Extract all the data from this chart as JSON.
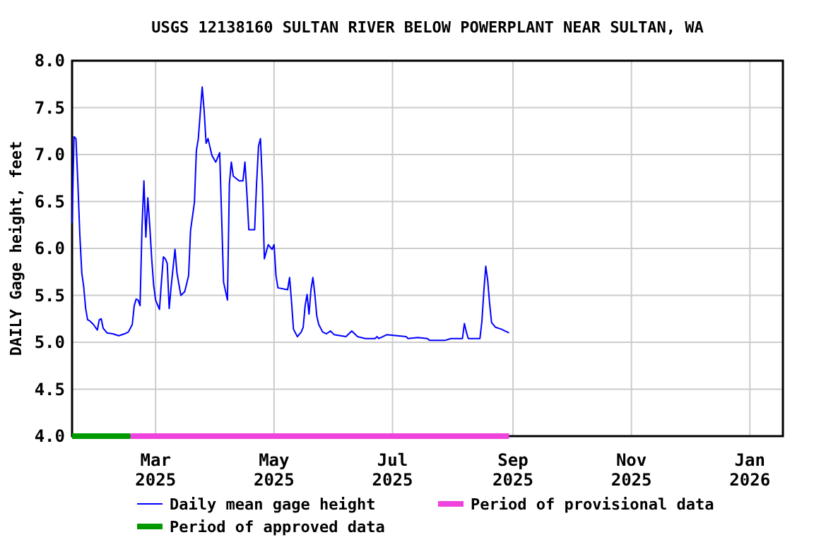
{
  "chart_data": {
    "type": "line",
    "title": "USGS 12138160 SULTAN RIVER BELOW POWERPLANT NEAR SULTAN, WA",
    "ylabel": "DAILY Gage height, feet",
    "xlim": [
      "2025-01-17",
      "2026-01-18"
    ],
    "xticks": [
      {
        "value": "2025-03-01",
        "label": "Mar 2025"
      },
      {
        "value": "2025-05-01",
        "label": "May 2025"
      },
      {
        "value": "2025-07-01",
        "label": "Jul 2025"
      },
      {
        "value": "2025-09-01",
        "label": "Sep 2025"
      },
      {
        "value": "2025-11-01",
        "label": "Nov 2025"
      },
      {
        "value": "2026-01-01",
        "label": "Jan 2026"
      }
    ],
    "ylim": [
      4,
      8
    ],
    "yticks": [
      {
        "value": 4,
        "label": "4.0"
      },
      {
        "value": 4.5,
        "label": "4.5"
      },
      {
        "value": 5,
        "label": "5.0"
      },
      {
        "value": 5.5,
        "label": "5.5"
      },
      {
        "value": 6,
        "label": "6.0"
      },
      {
        "value": 6.5,
        "label": "6.5"
      },
      {
        "value": 7,
        "label": "7.0"
      },
      {
        "value": 7.5,
        "label": "7.5"
      },
      {
        "value": 8,
        "label": "8.0"
      }
    ],
    "grid": true,
    "legend": "bottom",
    "marker": "none",
    "line_style": "solid",
    "series": [
      {
        "name": "Daily mean gage height",
        "color": "#0000ff",
        "x": [
          "2025-01-17",
          "2025-01-18",
          "2025-01-19",
          "2025-01-20",
          "2025-01-21",
          "2025-01-22",
          "2025-01-23",
          "2025-01-24",
          "2025-01-25",
          "2025-01-26",
          "2025-01-28",
          "2025-01-30",
          "2025-01-31",
          "2025-02-01",
          "2025-02-02",
          "2025-02-04",
          "2025-02-07",
          "2025-02-10",
          "2025-02-13",
          "2025-02-15",
          "2025-02-17",
          "2025-02-18",
          "2025-02-19",
          "2025-02-20",
          "2025-02-21",
          "2025-02-22",
          "2025-02-23",
          "2025-02-24",
          "2025-02-25",
          "2025-02-26",
          "2025-02-27",
          "2025-02-28",
          "2025-03-01",
          "2025-03-03",
          "2025-03-04",
          "2025-03-05",
          "2025-03-06",
          "2025-03-07",
          "2025-03-08",
          "2025-03-09",
          "2025-03-11",
          "2025-03-12",
          "2025-03-14",
          "2025-03-16",
          "2025-03-18",
          "2025-03-19",
          "2025-03-21",
          "2025-03-22",
          "2025-03-23",
          "2025-03-25",
          "2025-03-26",
          "2025-03-27",
          "2025-03-28",
          "2025-03-30",
          "2025-04-01",
          "2025-04-03",
          "2025-04-04",
          "2025-04-05",
          "2025-04-07",
          "2025-04-08",
          "2025-04-09",
          "2025-04-10",
          "2025-04-13",
          "2025-04-15",
          "2025-04-16",
          "2025-04-17",
          "2025-04-18",
          "2025-04-21",
          "2025-04-22",
          "2025-04-23",
          "2025-04-24",
          "2025-04-25",
          "2025-04-26",
          "2025-04-28",
          "2025-04-30",
          "2025-05-01",
          "2025-05-02",
          "2025-05-03",
          "2025-05-08",
          "2025-05-09",
          "2025-05-10",
          "2025-05-11",
          "2025-05-13",
          "2025-05-15",
          "2025-05-16",
          "2025-05-17",
          "2025-05-18",
          "2025-05-19",
          "2025-05-20",
          "2025-05-21",
          "2025-05-22",
          "2025-05-23",
          "2025-05-24",
          "2025-05-26",
          "2025-05-28",
          "2025-05-30",
          "2025-06-01",
          "2025-06-07",
          "2025-06-10",
          "2025-06-13",
          "2025-06-17",
          "2025-06-22",
          "2025-06-23",
          "2025-06-24",
          "2025-06-28",
          "2025-07-08",
          "2025-07-09",
          "2025-07-14",
          "2025-07-19",
          "2025-07-20",
          "2025-07-28",
          "2025-07-31",
          "2025-08-06",
          "2025-08-07",
          "2025-08-08",
          "2025-08-09",
          "2025-08-15",
          "2025-08-16",
          "2025-08-17",
          "2025-08-18",
          "2025-08-19",
          "2025-08-20",
          "2025-08-21",
          "2025-08-23",
          "2025-08-26",
          "2025-08-28",
          "2025-08-30"
        ],
        "values": [
          6.27,
          7.19,
          7.17,
          6.69,
          6.14,
          5.74,
          5.59,
          5.36,
          5.24,
          5.23,
          5.19,
          5.13,
          5.24,
          5.25,
          5.15,
          5.1,
          5.09,
          5.07,
          5.09,
          5.11,
          5.19,
          5.39,
          5.46,
          5.45,
          5.39,
          6.22,
          6.72,
          6.12,
          6.54,
          6.24,
          5.89,
          5.61,
          5.45,
          5.35,
          5.64,
          5.91,
          5.89,
          5.84,
          5.36,
          5.59,
          5.99,
          5.74,
          5.5,
          5.54,
          5.71,
          6.19,
          6.49,
          7.04,
          7.17,
          7.72,
          7.47,
          7.12,
          7.17,
          6.99,
          6.92,
          7.02,
          6.34,
          5.64,
          5.45,
          6.69,
          6.92,
          6.77,
          6.72,
          6.72,
          6.92,
          6.59,
          6.2,
          6.2,
          6.69,
          7.09,
          7.17,
          6.69,
          5.89,
          6.04,
          5.99,
          6.04,
          5.71,
          5.58,
          5.56,
          5.69,
          5.43,
          5.14,
          5.06,
          5.11,
          5.16,
          5.39,
          5.51,
          5.3,
          5.56,
          5.69,
          5.51,
          5.28,
          5.19,
          5.11,
          5.09,
          5.12,
          5.08,
          5.06,
          5.12,
          5.06,
          5.04,
          5.04,
          5.06,
          5.04,
          5.08,
          5.06,
          5.04,
          5.05,
          5.04,
          5.02,
          5.02,
          5.04,
          5.04,
          5.2,
          5.11,
          5.04,
          5.04,
          5.22,
          5.54,
          5.81,
          5.66,
          5.41,
          5.21,
          5.16,
          5.14,
          5.12,
          5.1
        ]
      },
      {
        "name": "Period of provisional data",
        "color": "#ee44dd",
        "x": [
          "2025-02-16",
          "2025-08-30"
        ],
        "values": [
          4,
          4
        ]
      },
      {
        "name": "Period of approved data",
        "color": "#009900",
        "x": [
          "2025-01-17",
          "2025-02-16"
        ],
        "values": [
          4,
          4
        ]
      }
    ]
  }
}
